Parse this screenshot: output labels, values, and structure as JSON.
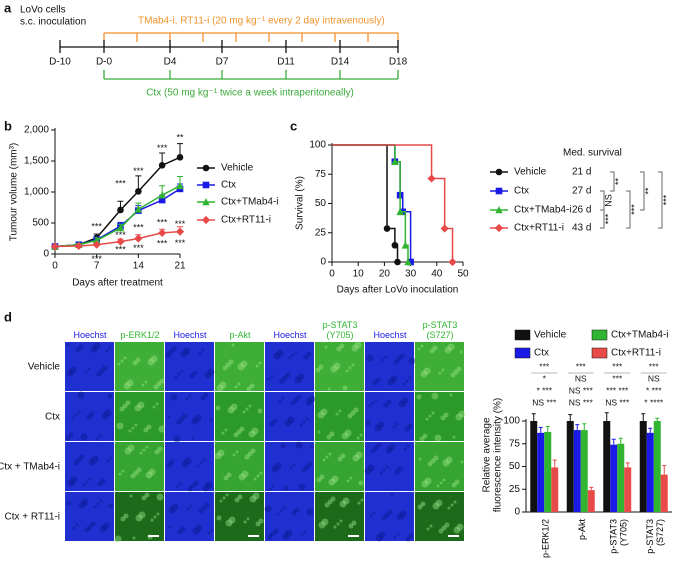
{
  "panel_labels": {
    "a": "a",
    "b": "b",
    "c": "c",
    "d": "d"
  },
  "panel_a": {
    "inoculation": [
      "LoVo cells",
      "s.c. inoculation"
    ],
    "antibody_schedule": "TMab4-i, RT11-i (20 mg kg⁻¹ every 2 day intravenously)",
    "ctx_schedule": "Ctx (50 mg kg⁻¹ twice a week intraperitoneally)",
    "days": [
      "D-10",
      "D-0",
      "D4",
      "D7",
      "D11",
      "D14",
      "D18"
    ]
  },
  "panel_d": {
    "column_headers": [
      "Hoechst",
      "p-ERK1/2",
      "Hoechst",
      "p-Akt",
      "Hoechst",
      "p-STAT3 (Y705)",
      "Hoechst",
      "p-STAT3 (S727)"
    ],
    "row_labels": [
      "Vehicle",
      "Ctx",
      "Ctx + TMab4-i",
      "Ctx + RT11-i"
    ]
  },
  "chart_data": [
    {
      "type": "line",
      "x_label": "Days after treatment",
      "y_label": "Tumour volume (mm³)",
      "x": [
        0,
        4,
        7,
        11,
        14,
        18,
        21
      ],
      "xlim": [
        0,
        21
      ],
      "xticks": [
        0,
        7,
        14,
        21
      ],
      "ylim": [
        0,
        2000
      ],
      "yticks": [
        0,
        500,
        {
          "value": 1000,
          "label": "1,000"
        },
        {
          "value": 1500,
          "label": "1,500"
        },
        {
          "value": 2000,
          "label": "2,000"
        }
      ],
      "series": [
        {
          "name": "Vehicle",
          "color": "#111111",
          "marker": "circle",
          "values": [
            120,
            150,
            260,
            710,
            1010,
            1430,
            1560
          ],
          "errors": [
            0,
            20,
            60,
            140,
            250,
            200,
            220
          ]
        },
        {
          "name": "Ctx",
          "color": "#1a1ae6",
          "marker": "square",
          "values": [
            120,
            150,
            230,
            450,
            700,
            870,
            1050
          ],
          "errors": [
            0,
            20,
            40,
            60,
            80,
            80,
            80
          ]
        },
        {
          "name": "Ctx+TMab4-i",
          "color": "#2fb52f",
          "marker": "triangle",
          "values": [
            120,
            150,
            220,
            420,
            720,
            950,
            1100
          ],
          "errors": [
            0,
            20,
            40,
            60,
            100,
            150,
            150
          ]
        },
        {
          "name": "Ctx+RT11-i",
          "color": "#e84a4a",
          "marker": "diamond",
          "values": [
            120,
            130,
            150,
            200,
            250,
            340,
            360
          ],
          "errors": [
            0,
            10,
            20,
            40,
            60,
            60,
            80
          ]
        }
      ],
      "annotations": [
        {
          "text": "***",
          "x": 7,
          "y": 430
        },
        {
          "text": "***",
          "x": 11,
          "y": 1130
        },
        {
          "text": "***",
          "x": 14,
          "y": 1330
        },
        {
          "text": "***",
          "x": 18,
          "y": 1700
        },
        {
          "text": "**",
          "x": 21,
          "y": 1870
        },
        {
          "text": "***",
          "x": 11,
          "y": 300
        },
        {
          "text": "***",
          "x": 14,
          "y": 420
        },
        {
          "text": "***",
          "x": 18,
          "y": 500
        },
        {
          "text": "***",
          "x": 21,
          "y": 470
        },
        {
          "text": "***",
          "x": 7,
          "y": -90
        },
        {
          "text": "***",
          "x": 11,
          "y": 60
        },
        {
          "text": "***",
          "x": 14,
          "y": 90
        },
        {
          "text": "***",
          "x": 18,
          "y": 160
        },
        {
          "text": "***",
          "x": 21,
          "y": 170
        }
      ]
    },
    {
      "type": "step",
      "x_label": "Days after LoVo inoculation",
      "y_label": "Survival (%)",
      "xlim": [
        0,
        50
      ],
      "xticks": [
        0,
        10,
        20,
        30,
        40,
        50
      ],
      "ylim": [
        0,
        100
      ],
      "yticks": [
        0,
        25,
        50,
        75,
        100
      ],
      "series": [
        {
          "name": "Vehicle",
          "color": "#111111",
          "marker": "circle",
          "x": [
            0,
            21,
            24,
            25
          ],
          "values": [
            100,
            28.6,
            14.3,
            0
          ]
        },
        {
          "name": "Ctx",
          "color": "#1a1ae6",
          "marker": "square",
          "x": [
            0,
            24,
            26,
            27,
            30
          ],
          "values": [
            100,
            85.7,
            57.1,
            42.9,
            0
          ]
        },
        {
          "name": "Ctx+TMab4-i",
          "color": "#2fb52f",
          "marker": "triangle",
          "x": [
            0,
            24,
            26,
            28,
            29
          ],
          "values": [
            100,
            85.7,
            42.9,
            14.3,
            0
          ]
        },
        {
          "name": "Ctx+RT11-i",
          "color": "#e84a4a",
          "marker": "diamond",
          "x": [
            0,
            38,
            43,
            46
          ],
          "values": [
            100,
            71.4,
            28.6,
            0
          ]
        }
      ],
      "median_title": "Med. survival",
      "median_labels": [
        "21 d",
        "27 d",
        "26 d",
        "43 d"
      ],
      "comparisons": [
        "**",
        "NS",
        "***",
        "***",
        "**",
        "***"
      ]
    },
    {
      "type": "grouped_bar",
      "y_label": [
        "Relative average",
        "fluorescence intensity (%)"
      ],
      "categories": [
        "p-ERK1/2",
        "p-Akt",
        "p-STAT3 (Y705)",
        "p-STAT3 (S727)"
      ],
      "ylim": [
        0,
        100
      ],
      "yticks": [
        0,
        25,
        50,
        75,
        100
      ],
      "series": [
        {
          "name": "Vehicle",
          "color": "#111111",
          "values": [
            100,
            100,
            100,
            100
          ],
          "errors": [
            8,
            7,
            9,
            8
          ]
        },
        {
          "name": "Ctx",
          "color": "#1a1ae6",
          "values": [
            87,
            90,
            74,
            87
          ],
          "errors": [
            6,
            6,
            6,
            5
          ]
        },
        {
          "name": "Ctx+TMab4-i",
          "color": "#2fb52f",
          "values": [
            88,
            90,
            75,
            100
          ],
          "errors": [
            6,
            7,
            6,
            3
          ]
        },
        {
          "name": "Ctx+RT11-i",
          "color": "#e84a4a",
          "values": [
            49,
            24,
            49,
            41
          ],
          "errors": [
            8,
            3,
            5,
            10
          ]
        }
      ],
      "significance": [
        [
          "***",
          "*",
          "* ***",
          "NS ***"
        ],
        [
          "***",
          "NS",
          "NS ***",
          "NS ***"
        ],
        [
          "***",
          "***",
          "*** ***",
          "NS ***"
        ],
        [
          "***",
          "NS",
          "* ***",
          "* ****"
        ]
      ]
    }
  ]
}
